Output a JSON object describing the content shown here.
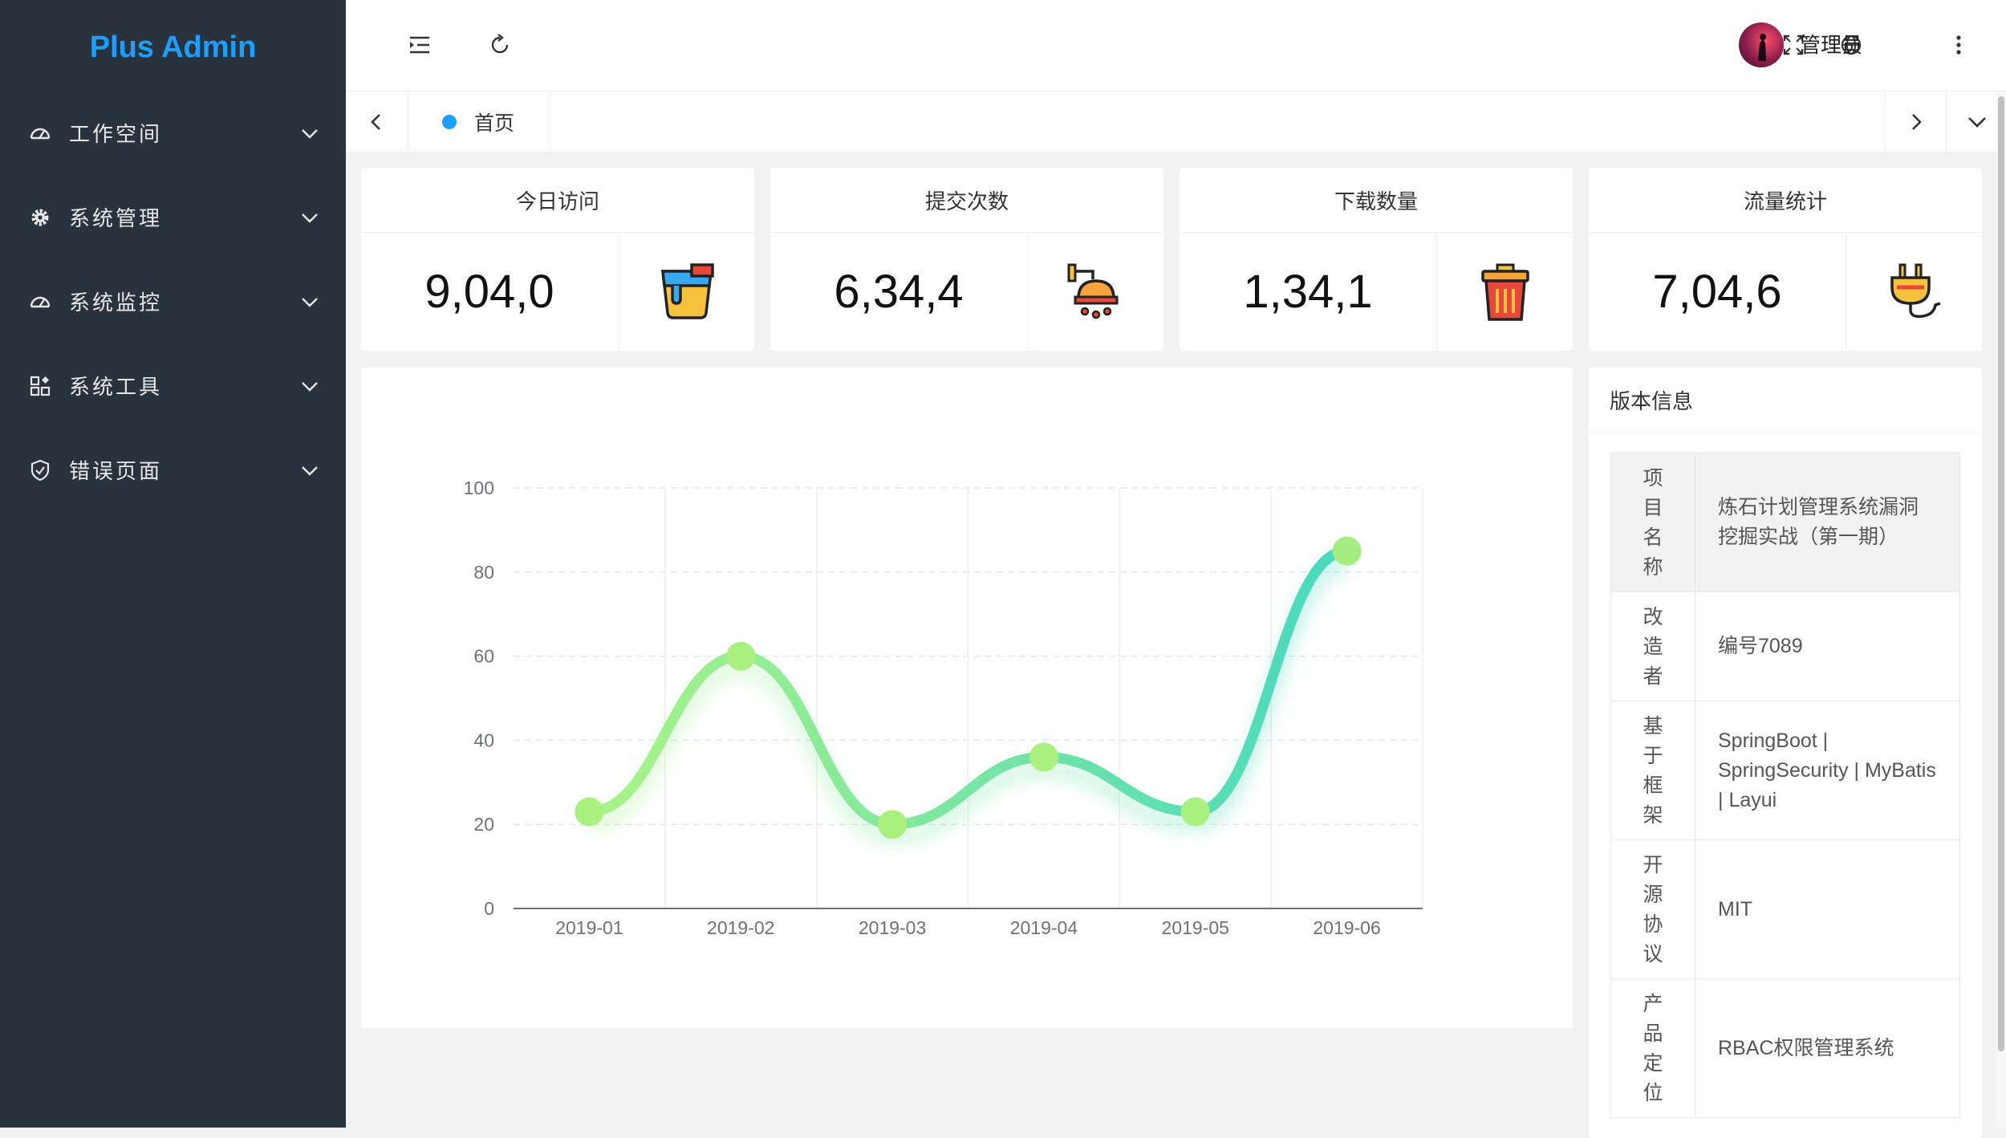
{
  "app": {
    "title": "Plus Admin"
  },
  "sidebar": {
    "items": [
      {
        "label": "工作空间",
        "icon": "dashboard-icon"
      },
      {
        "label": "系统管理",
        "icon": "gear-icon"
      },
      {
        "label": "系统监控",
        "icon": "monitor-gauge-icon"
      },
      {
        "label": "系统工具",
        "icon": "apps-grid-icon"
      },
      {
        "label": "错误页面",
        "icon": "shield-check-icon"
      }
    ]
  },
  "header": {
    "buttons": [
      "menu-fold-icon",
      "refresh-icon",
      "fullscreen-icon",
      "language-globe-icon",
      "more-vertical-icon"
    ],
    "user": {
      "name": "管理员"
    }
  },
  "tabs": {
    "items": [
      {
        "label": "首页",
        "active": true
      }
    ]
  },
  "stats": [
    {
      "title": "今日访问",
      "value": "9,04,0",
      "icon": "paint-bucket-icon"
    },
    {
      "title": "提交次数",
      "value": "6,34,4",
      "icon": "shower-icon"
    },
    {
      "title": "下载数量",
      "value": "1,34,1",
      "icon": "trash-bin-icon"
    },
    {
      "title": "流量统计",
      "value": "7,04,6",
      "icon": "power-plug-icon"
    }
  ],
  "chart_data": {
    "type": "line",
    "smooth": true,
    "categories": [
      "2019-01",
      "2019-02",
      "2019-03",
      "2019-04",
      "2019-05",
      "2019-06"
    ],
    "series": [
      {
        "values": [
          23,
          60,
          20,
          36,
          23,
          85
        ]
      }
    ],
    "ylim": [
      0,
      100
    ],
    "yticks": [
      0,
      20,
      40,
      60,
      80,
      100
    ],
    "grid": true,
    "colors": {
      "start": "#a9f387",
      "end": "#48d8bf"
    }
  },
  "version": {
    "title": "版本信息",
    "rows": [
      {
        "key": "项目名称",
        "value": "炼石计划管理系统漏洞挖掘实战（第一期）"
      },
      {
        "key": "改造者",
        "value": "编号7089"
      },
      {
        "key": "基于框架",
        "value": "SpringBoot | SpringSecurity | MyBatis | Layui"
      },
      {
        "key": "开源协议",
        "value": "MIT"
      },
      {
        "key": "产品定位",
        "value": "RBAC权限管理系统"
      }
    ]
  },
  "colors": {
    "sidebar_bg": "#28333e",
    "accent": "#1e9fff",
    "page_bg": "#f2f2f2"
  }
}
